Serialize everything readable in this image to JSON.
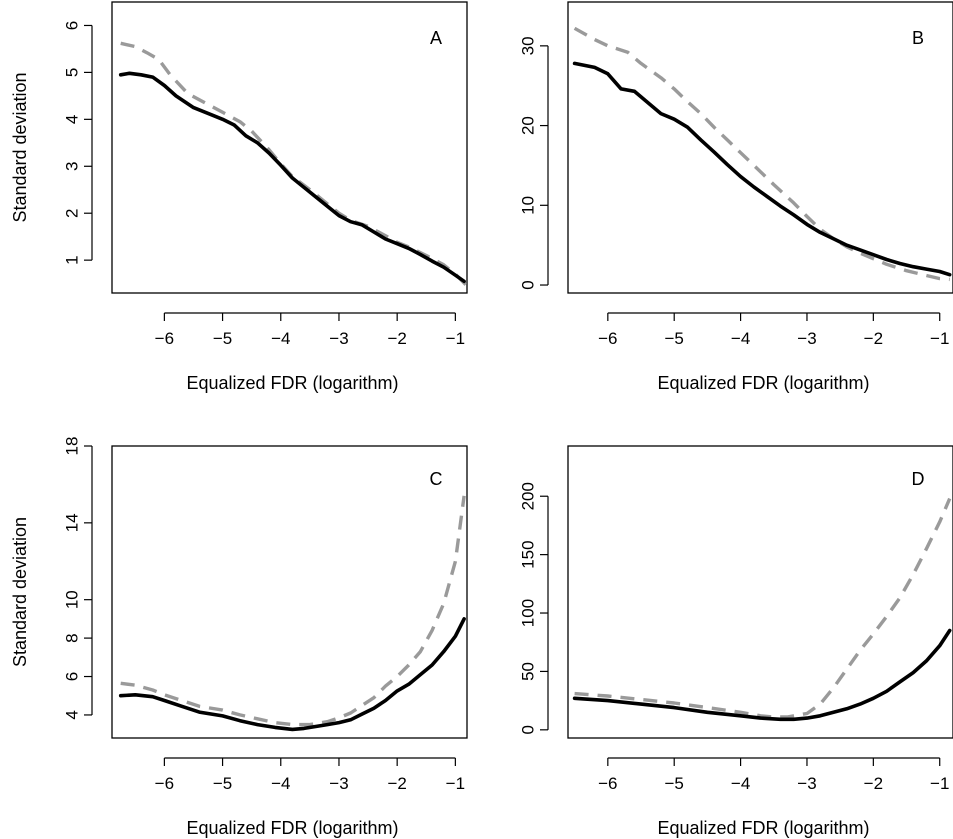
{
  "chart_data": [
    {
      "type": "line",
      "panel_label": "A",
      "xlabel": "Equalized FDR (logarithm)",
      "ylabel": "Standard deviation",
      "xlim": [
        -6.9,
        -0.8
      ],
      "ylim": [
        0.3,
        6.5
      ],
      "xticks": [
        -6,
        -5,
        -4,
        -3,
        -2,
        -1
      ],
      "yticks": [
        1,
        2,
        3,
        4,
        5,
        6
      ],
      "xtick_labels": [
        "−6",
        "−5",
        "−4",
        "−3",
        "−2",
        "−1"
      ],
      "ytick_labels": [
        "1",
        "2",
        "3",
        "4",
        "5",
        "6"
      ],
      "series": [
        {
          "style": "solid-black",
          "x": [
            -6.75,
            -6.6,
            -6.4,
            -6.2,
            -6.0,
            -5.8,
            -5.5,
            -5.2,
            -5.0,
            -4.8,
            -4.6,
            -4.4,
            -4.2,
            -4.0,
            -3.8,
            -3.6,
            -3.4,
            -3.2,
            -3.0,
            -2.8,
            -2.6,
            -2.4,
            -2.2,
            -2.0,
            -1.8,
            -1.6,
            -1.4,
            -1.2,
            -1.0,
            -0.85
          ],
          "y": [
            4.95,
            4.98,
            4.95,
            4.9,
            4.72,
            4.5,
            4.25,
            4.1,
            4.0,
            3.88,
            3.65,
            3.5,
            3.28,
            3.02,
            2.75,
            2.55,
            2.35,
            2.15,
            1.95,
            1.82,
            1.75,
            1.6,
            1.45,
            1.35,
            1.25,
            1.12,
            0.98,
            0.85,
            0.68,
            0.55
          ]
        },
        {
          "style": "dashed-gray",
          "x": [
            -6.75,
            -6.5,
            -6.3,
            -6.1,
            -5.9,
            -5.6,
            -5.3,
            -5.0,
            -4.7,
            -4.5,
            -4.2,
            -4.0,
            -3.8,
            -3.5,
            -3.2,
            -3.0,
            -2.8,
            -2.5,
            -2.2,
            -2.0,
            -1.8,
            -1.5,
            -1.2,
            -1.0,
            -0.8
          ],
          "y": [
            5.62,
            5.55,
            5.42,
            5.28,
            4.95,
            4.55,
            4.35,
            4.15,
            3.95,
            3.75,
            3.35,
            3.05,
            2.78,
            2.5,
            2.2,
            2.0,
            1.85,
            1.72,
            1.52,
            1.38,
            1.28,
            1.1,
            0.9,
            0.7,
            0.45
          ]
        }
      ]
    },
    {
      "type": "line",
      "panel_label": "B",
      "xlabel": "Equalized FDR (logarithm)",
      "ylabel": "",
      "xlim": [
        -6.6,
        -0.8
      ],
      "ylim": [
        -1,
        35.5
      ],
      "xticks": [
        -6,
        -5,
        -4,
        -3,
        -2,
        -1
      ],
      "yticks": [
        0,
        10,
        20,
        30
      ],
      "xtick_labels": [
        "−6",
        "−5",
        "−4",
        "−3",
        "−2",
        "−1"
      ],
      "ytick_labels": [
        "0",
        "10",
        "20",
        "30"
      ],
      "series": [
        {
          "style": "solid-black",
          "x": [
            -6.5,
            -6.2,
            -6.0,
            -5.8,
            -5.6,
            -5.4,
            -5.2,
            -5.0,
            -4.8,
            -4.6,
            -4.4,
            -4.2,
            -4.0,
            -3.8,
            -3.6,
            -3.4,
            -3.2,
            -3.0,
            -2.8,
            -2.6,
            -2.4,
            -2.2,
            -2.0,
            -1.8,
            -1.6,
            -1.4,
            -1.2,
            -1.0,
            -0.85
          ],
          "y": [
            27.8,
            27.3,
            26.5,
            24.6,
            24.3,
            22.9,
            21.5,
            20.8,
            19.8,
            18.2,
            16.7,
            15.1,
            13.6,
            12.3,
            11.1,
            9.9,
            8.8,
            7.6,
            6.6,
            5.8,
            5.0,
            4.4,
            3.8,
            3.2,
            2.7,
            2.3,
            2.0,
            1.7,
            1.3
          ]
        },
        {
          "style": "dashed-gray",
          "x": [
            -6.5,
            -6.2,
            -6.0,
            -5.7,
            -5.5,
            -5.2,
            -5.0,
            -4.8,
            -4.6,
            -4.4,
            -4.2,
            -4.0,
            -3.8,
            -3.5,
            -3.2,
            -3.0,
            -2.8,
            -2.6,
            -2.4,
            -2.2,
            -2.0,
            -1.8,
            -1.5,
            -1.2,
            -1.0,
            -0.85
          ],
          "y": [
            32.2,
            30.8,
            30.0,
            29.2,
            27.8,
            26.0,
            24.6,
            23.0,
            21.5,
            19.8,
            18.2,
            16.6,
            15.0,
            12.6,
            10.3,
            8.6,
            7.0,
            5.8,
            4.8,
            4.0,
            3.3,
            2.6,
            1.8,
            1.2,
            0.8,
            0.7
          ]
        }
      ]
    },
    {
      "type": "line",
      "panel_label": "C",
      "xlabel": "Equalized FDR (logarithm)",
      "ylabel": "Standard deviation",
      "xlim": [
        -6.9,
        -0.8
      ],
      "ylim": [
        2.8,
        18.0
      ],
      "xticks": [
        -6,
        -5,
        -4,
        -3,
        -2,
        -1
      ],
      "yticks": [
        4,
        6,
        8,
        10,
        14,
        18
      ],
      "xtick_labels": [
        "−6",
        "−5",
        "−4",
        "−3",
        "−2",
        "−1"
      ],
      "ytick_labels": [
        "4",
        "6",
        "8",
        "10",
        "14",
        "18"
      ],
      "series": [
        {
          "style": "solid-black",
          "x": [
            -6.75,
            -6.5,
            -6.2,
            -6.0,
            -5.7,
            -5.4,
            -5.0,
            -4.7,
            -4.4,
            -4.1,
            -3.8,
            -3.6,
            -3.4,
            -3.2,
            -3.0,
            -2.8,
            -2.6,
            -2.4,
            -2.2,
            -2.0,
            -1.8,
            -1.6,
            -1.4,
            -1.2,
            -1.0,
            -0.85
          ],
          "y": [
            5.0,
            5.05,
            4.95,
            4.75,
            4.45,
            4.15,
            3.95,
            3.7,
            3.5,
            3.35,
            3.25,
            3.3,
            3.4,
            3.5,
            3.6,
            3.75,
            4.05,
            4.35,
            4.75,
            5.25,
            5.6,
            6.1,
            6.6,
            7.3,
            8.1,
            9.0
          ]
        },
        {
          "style": "dashed-gray",
          "x": [
            -6.75,
            -6.5,
            -6.2,
            -6.0,
            -5.7,
            -5.4,
            -5.0,
            -4.7,
            -4.4,
            -4.1,
            -3.8,
            -3.5,
            -3.2,
            -3.0,
            -2.8,
            -2.6,
            -2.4,
            -2.2,
            -2.0,
            -1.8,
            -1.6,
            -1.4,
            -1.2,
            -1.0,
            -0.85
          ],
          "y": [
            5.65,
            5.55,
            5.3,
            5.05,
            4.75,
            4.45,
            4.25,
            4.0,
            3.8,
            3.6,
            3.5,
            3.5,
            3.65,
            3.85,
            4.1,
            4.5,
            4.9,
            5.5,
            6.0,
            6.6,
            7.3,
            8.4,
            9.8,
            12.0,
            15.4
          ]
        }
      ]
    },
    {
      "type": "line",
      "panel_label": "D",
      "xlabel": "Equalized FDR (logarithm)",
      "ylabel": "",
      "xlim": [
        -6.6,
        -0.8
      ],
      "ylim": [
        -7,
        243
      ],
      "xticks": [
        -6,
        -5,
        -4,
        -3,
        -2,
        -1
      ],
      "yticks": [
        0,
        50,
        100,
        150,
        200
      ],
      "xtick_labels": [
        "−6",
        "−5",
        "−4",
        "−3",
        "−2",
        "−1"
      ],
      "ytick_labels": [
        "0",
        "50",
        "100",
        "150",
        "200"
      ],
      "series": [
        {
          "style": "solid-black",
          "x": [
            -6.5,
            -6.0,
            -5.5,
            -5.0,
            -4.5,
            -4.0,
            -3.7,
            -3.4,
            -3.2,
            -3.0,
            -2.8,
            -2.6,
            -2.4,
            -2.2,
            -2.0,
            -1.8,
            -1.6,
            -1.4,
            -1.2,
            -1.0,
            -0.85
          ],
          "y": [
            27,
            25,
            22,
            19,
            15,
            12,
            10,
            9,
            9,
            10,
            12,
            15,
            18,
            22,
            27,
            33,
            41,
            49,
            59,
            72,
            85
          ]
        },
        {
          "style": "dashed-gray",
          "x": [
            -6.5,
            -6.0,
            -5.5,
            -5.0,
            -4.5,
            -4.0,
            -3.7,
            -3.5,
            -3.3,
            -3.0,
            -2.8,
            -2.6,
            -2.4,
            -2.2,
            -2.0,
            -1.8,
            -1.6,
            -1.4,
            -1.2,
            -1.0,
            -0.85
          ],
          "y": [
            31,
            29,
            26,
            23,
            19,
            15,
            12,
            11,
            11,
            14,
            22,
            36,
            52,
            68,
            82,
            97,
            113,
            133,
            155,
            178,
            198
          ]
        }
      ]
    }
  ]
}
